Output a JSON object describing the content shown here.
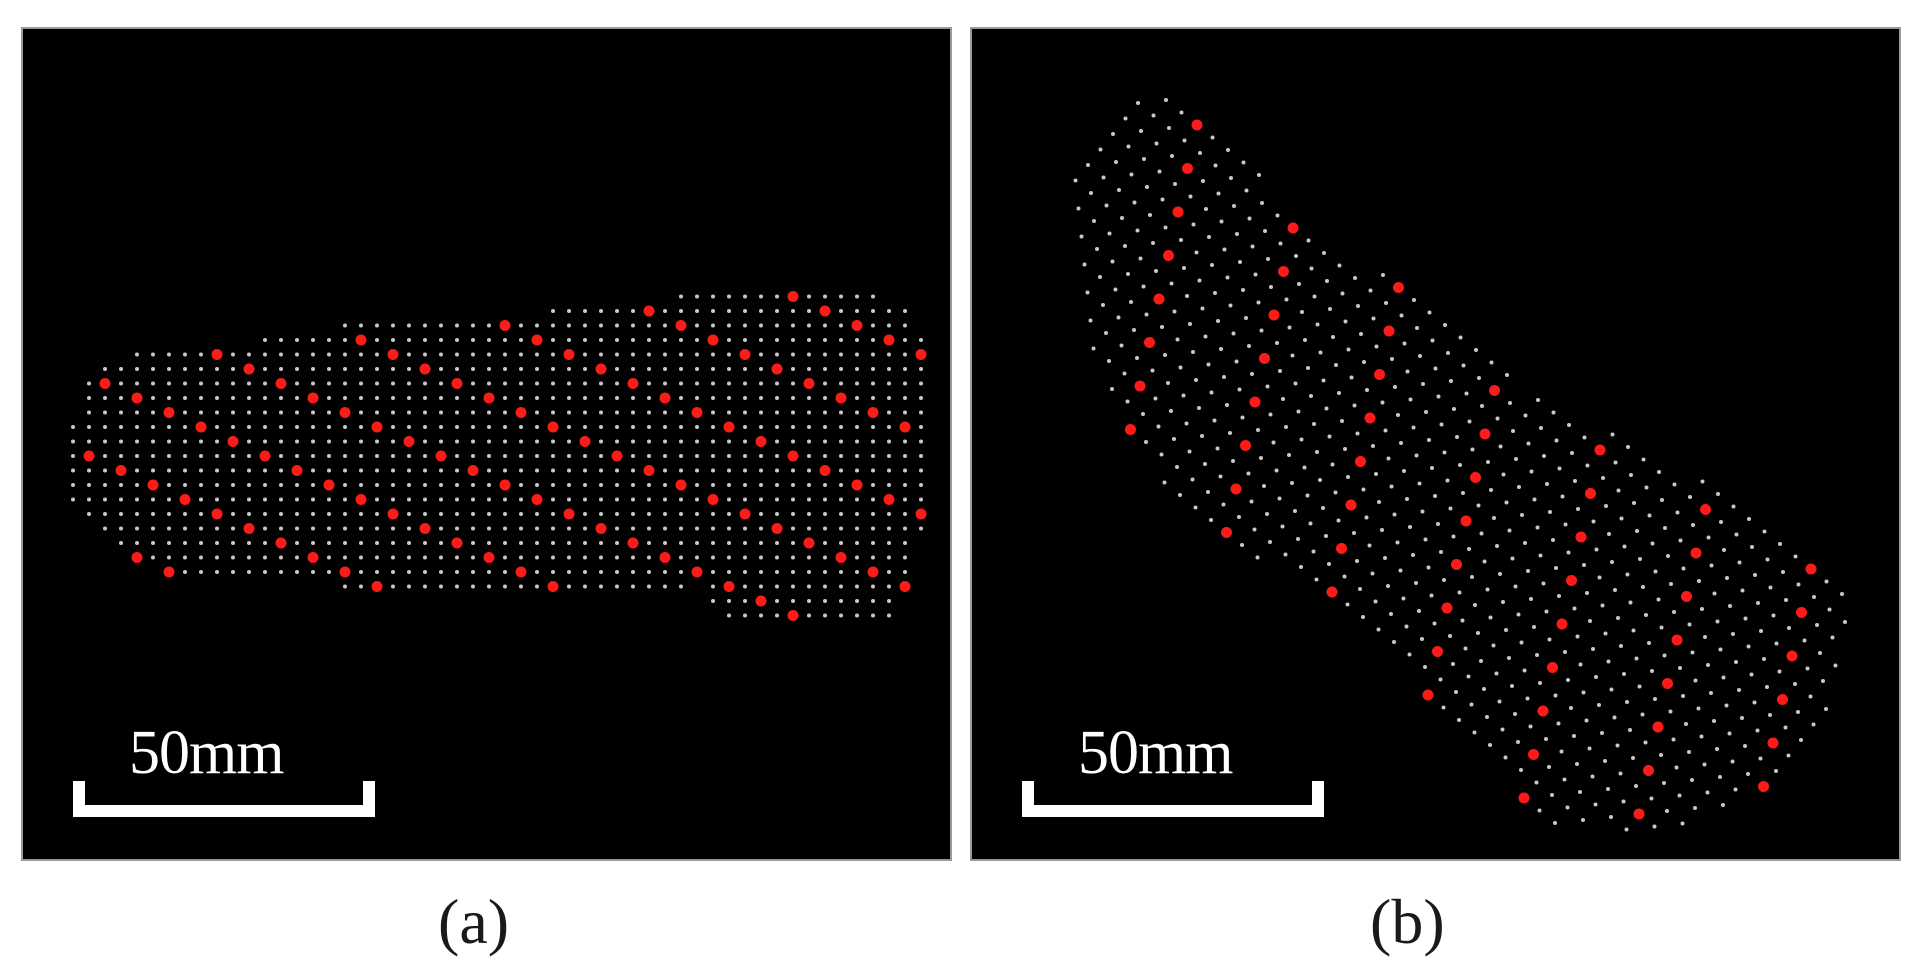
{
  "panels": [
    {
      "id": "a",
      "caption": "(a)",
      "scale_label": "50mm"
    },
    {
      "id": "b",
      "caption": "(b)",
      "scale_label": "50mm"
    }
  ],
  "colors": {
    "background": "#000000",
    "grid_point": "#c8c8c8",
    "marker_point": "#ff1a1a",
    "scale_bar": "#ffffff"
  }
}
